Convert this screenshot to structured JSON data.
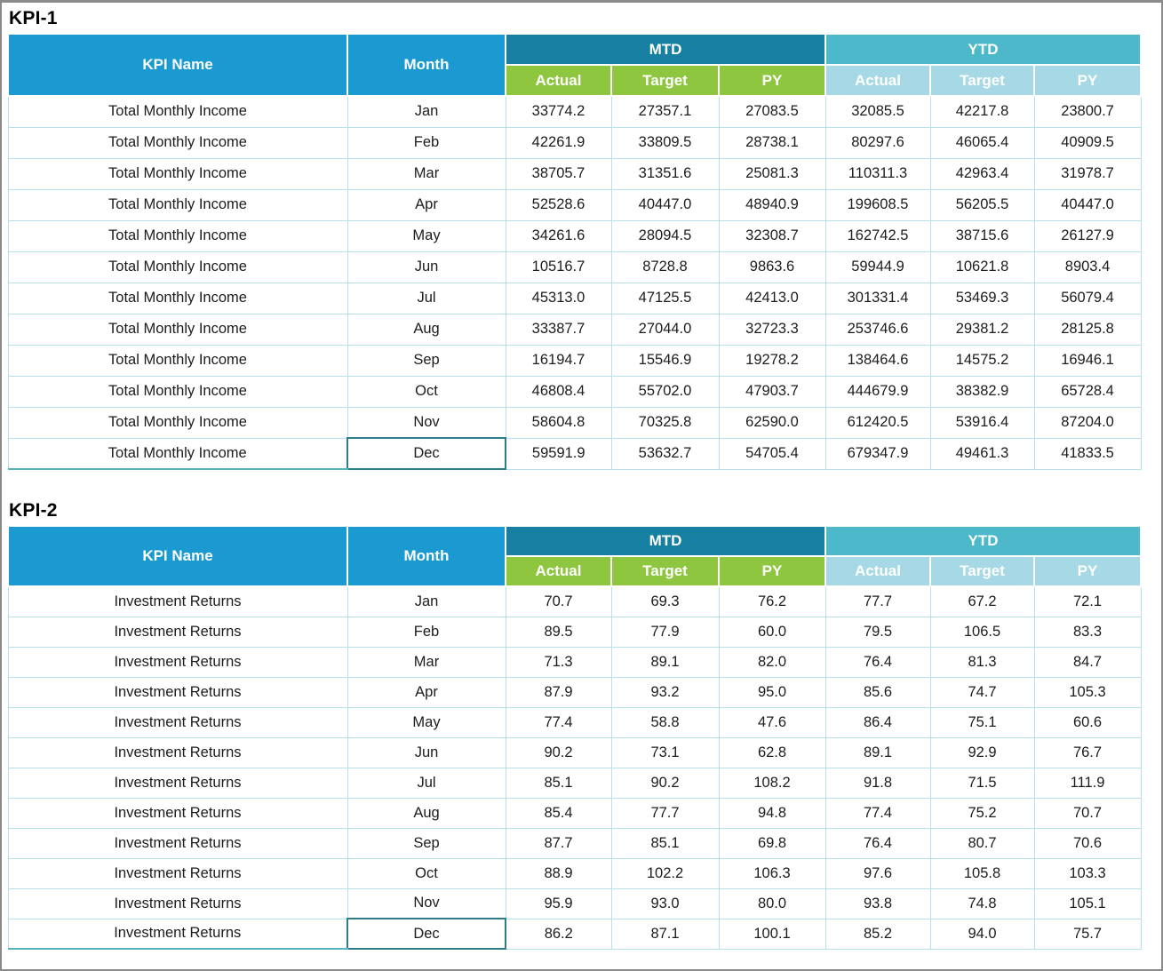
{
  "labels": {
    "kpi_name": "KPI Name",
    "month": "Month",
    "mtd": "MTD",
    "ytd": "YTD",
    "actual": "Actual",
    "target": "Target",
    "py": "PY"
  },
  "colors": {
    "header_blue": "#1b9ad2",
    "mtd_band_teal": "#1780a2",
    "ytd_band_teal": "#4cb8c9",
    "mtd_subheader_green": "#8ec73f",
    "ytd_subheader_light_blue": "#a6d9e5",
    "grid_line": "#b6e1ea",
    "active_cell_border": "#2e7d8c",
    "outer_frame_gray": "#8a8a8a"
  },
  "tables": [
    {
      "title": "KPI-1",
      "kpi_name": "Total Monthly Income",
      "rows": [
        {
          "month": "Jan",
          "mtd": [
            "33774.2",
            "27357.1",
            "27083.5"
          ],
          "ytd": [
            "32085.5",
            "42217.8",
            "23800.7"
          ]
        },
        {
          "month": "Feb",
          "mtd": [
            "42261.9",
            "33809.5",
            "28738.1"
          ],
          "ytd": [
            "80297.6",
            "46065.4",
            "40909.5"
          ]
        },
        {
          "month": "Mar",
          "mtd": [
            "38705.7",
            "31351.6",
            "25081.3"
          ],
          "ytd": [
            "110311.3",
            "42963.4",
            "31978.7"
          ]
        },
        {
          "month": "Apr",
          "mtd": [
            "52528.6",
            "40447.0",
            "48940.9"
          ],
          "ytd": [
            "199608.5",
            "56205.5",
            "40447.0"
          ]
        },
        {
          "month": "May",
          "mtd": [
            "34261.6",
            "28094.5",
            "32308.7"
          ],
          "ytd": [
            "162742.5",
            "38715.6",
            "26127.9"
          ]
        },
        {
          "month": "Jun",
          "mtd": [
            "10516.7",
            "8728.8",
            "9863.6"
          ],
          "ytd": [
            "59944.9",
            "10621.8",
            "8903.4"
          ]
        },
        {
          "month": "Jul",
          "mtd": [
            "45313.0",
            "47125.5",
            "42413.0"
          ],
          "ytd": [
            "301331.4",
            "53469.3",
            "56079.4"
          ]
        },
        {
          "month": "Aug",
          "mtd": [
            "33387.7",
            "27044.0",
            "32723.3"
          ],
          "ytd": [
            "253746.6",
            "29381.2",
            "28125.8"
          ]
        },
        {
          "month": "Sep",
          "mtd": [
            "16194.7",
            "15546.9",
            "19278.2"
          ],
          "ytd": [
            "138464.6",
            "14575.2",
            "16946.1"
          ]
        },
        {
          "month": "Oct",
          "mtd": [
            "46808.4",
            "55702.0",
            "47903.7"
          ],
          "ytd": [
            "444679.9",
            "38382.9",
            "65728.4"
          ]
        },
        {
          "month": "Nov",
          "mtd": [
            "58604.8",
            "70325.8",
            "62590.0"
          ],
          "ytd": [
            "612420.5",
            "53916.4",
            "87204.0"
          ]
        },
        {
          "month": "Dec",
          "mtd": [
            "59591.9",
            "53632.7",
            "54705.4"
          ],
          "ytd": [
            "679347.9",
            "49461.3",
            "41833.5"
          ]
        }
      ]
    },
    {
      "title": "KPI-2",
      "kpi_name": "Investment Returns",
      "rows": [
        {
          "month": "Jan",
          "mtd": [
            "70.7",
            "69.3",
            "76.2"
          ],
          "ytd": [
            "77.7",
            "67.2",
            "72.1"
          ]
        },
        {
          "month": "Feb",
          "mtd": [
            "89.5",
            "77.9",
            "60.0"
          ],
          "ytd": [
            "79.5",
            "106.5",
            "83.3"
          ]
        },
        {
          "month": "Mar",
          "mtd": [
            "71.3",
            "89.1",
            "82.0"
          ],
          "ytd": [
            "76.4",
            "81.3",
            "84.7"
          ]
        },
        {
          "month": "Apr",
          "mtd": [
            "87.9",
            "93.2",
            "95.0"
          ],
          "ytd": [
            "85.6",
            "74.7",
            "105.3"
          ]
        },
        {
          "month": "May",
          "mtd": [
            "77.4",
            "58.8",
            "47.6"
          ],
          "ytd": [
            "86.4",
            "75.1",
            "60.6"
          ]
        },
        {
          "month": "Jun",
          "mtd": [
            "90.2",
            "73.1",
            "62.8"
          ],
          "ytd": [
            "89.1",
            "92.9",
            "76.7"
          ]
        },
        {
          "month": "Jul",
          "mtd": [
            "85.1",
            "90.2",
            "108.2"
          ],
          "ytd": [
            "91.8",
            "71.5",
            "111.9"
          ]
        },
        {
          "month": "Aug",
          "mtd": [
            "85.4",
            "77.7",
            "94.8"
          ],
          "ytd": [
            "77.4",
            "75.2",
            "70.7"
          ]
        },
        {
          "month": "Sep",
          "mtd": [
            "87.7",
            "85.1",
            "69.8"
          ],
          "ytd": [
            "76.4",
            "80.7",
            "70.6"
          ]
        },
        {
          "month": "Oct",
          "mtd": [
            "88.9",
            "102.2",
            "106.3"
          ],
          "ytd": [
            "97.6",
            "105.8",
            "103.3"
          ]
        },
        {
          "month": "Nov",
          "mtd": [
            "95.9",
            "93.0",
            "80.0"
          ],
          "ytd": [
            "93.8",
            "74.8",
            "105.1"
          ]
        },
        {
          "month": "Dec",
          "mtd": [
            "86.2",
            "87.1",
            "100.1"
          ],
          "ytd": [
            "85.2",
            "94.0",
            "75.7"
          ]
        }
      ]
    }
  ]
}
